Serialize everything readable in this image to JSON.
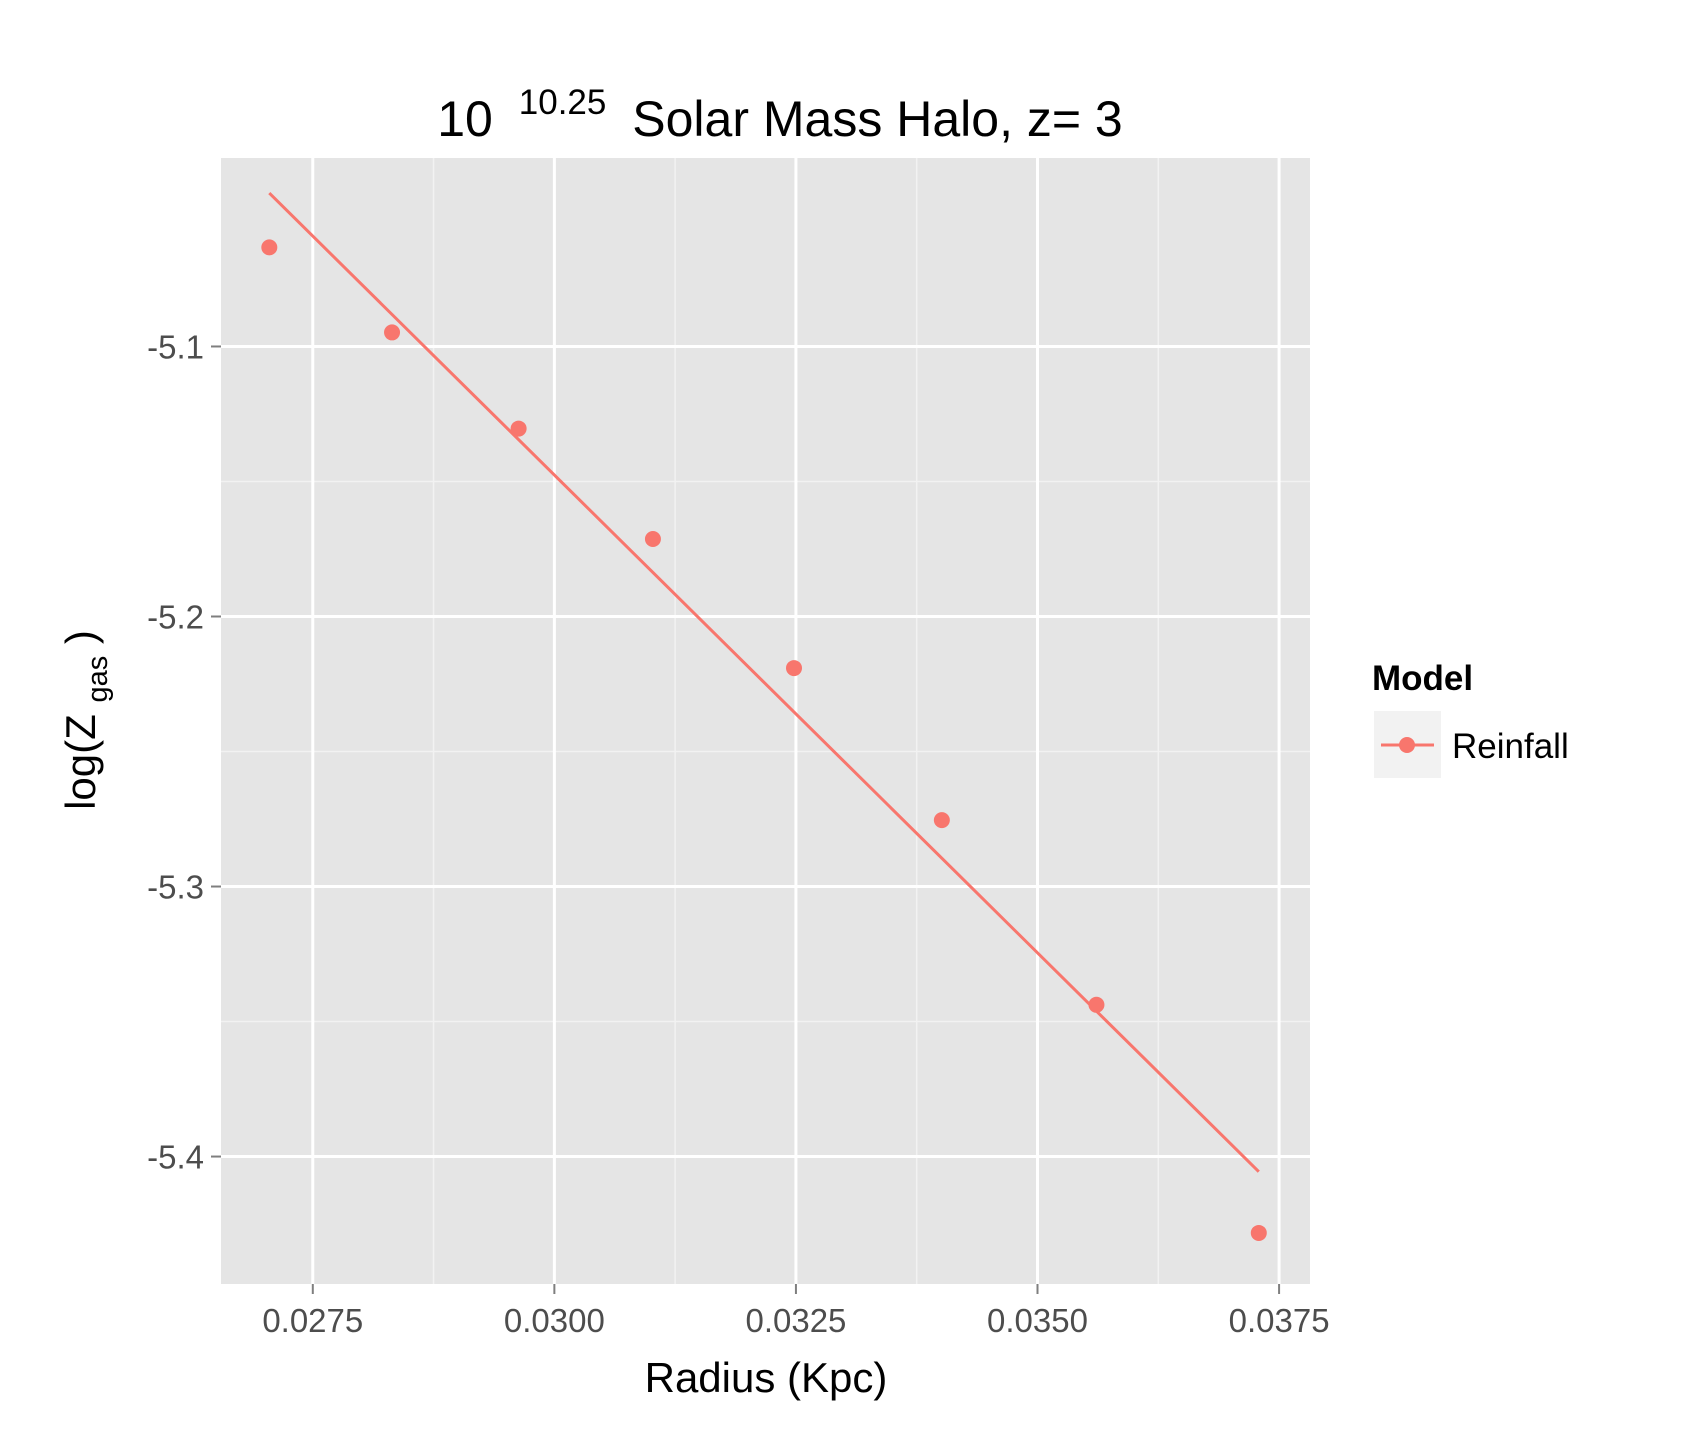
{
  "chart_data": {
    "type": "scatter",
    "title": {
      "base": "10",
      "exponent": "10.25",
      "rest": "Solar Mass Halo, z= 3"
    },
    "xlabel": "Radius (Kpc)",
    "ylabel": {
      "prefix": "log(Z",
      "subscript": "gas",
      "suffix": ")"
    },
    "xlim": [
      0.02655,
      0.03782
    ],
    "ylim": [
      -5.4472,
      -5.0302
    ],
    "x_ticks": [
      0.0275,
      0.03,
      0.0325,
      0.035,
      0.0375
    ],
    "x_tick_labels": [
      "0.0275",
      "0.0300",
      "0.0325",
      "0.0350",
      "0.0375"
    ],
    "y_ticks": [
      -5.1,
      -5.2,
      -5.3,
      -5.4
    ],
    "y_tick_labels": [
      "-5.1",
      "-5.2",
      "-5.3",
      "-5.4"
    ],
    "grid": true,
    "legend": {
      "title": "Model",
      "placement": "right",
      "entries": [
        "Reinfall"
      ]
    },
    "series": [
      {
        "name": "Reinfall",
        "color": "#F8766D",
        "points": [
          {
            "x": 0.02705,
            "y": -5.0633
          },
          {
            "x": 0.02832,
            "y": -5.0948
          },
          {
            "x": 0.02963,
            "y": -5.1304
          },
          {
            "x": 0.03102,
            "y": -5.1713
          },
          {
            "x": 0.03248,
            "y": -5.2191
          },
          {
            "x": 0.03401,
            "y": -5.2754
          },
          {
            "x": 0.03561,
            "y": -5.3438
          },
          {
            "x": 0.03729,
            "y": -5.4283
          }
        ],
        "fit_line": [
          {
            "x": 0.02705,
            "y": -5.0432
          },
          {
            "x": 0.03729,
            "y": -5.4056
          }
        ]
      }
    ]
  }
}
